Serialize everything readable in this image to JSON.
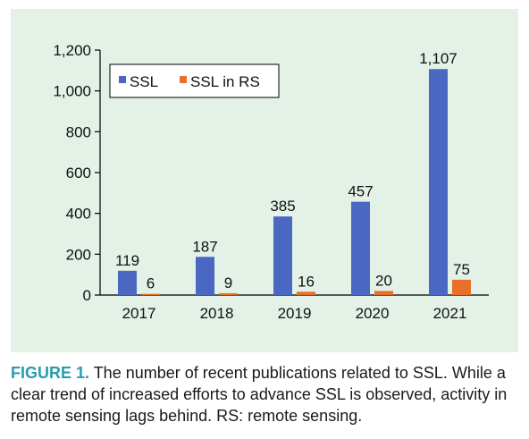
{
  "chart_data": {
    "type": "bar",
    "categories": [
      "2017",
      "2018",
      "2019",
      "2020",
      "2021"
    ],
    "series": [
      {
        "name": "SSL",
        "values": [
          119,
          187,
          385,
          457,
          1107
        ],
        "labels": [
          "119",
          "187",
          "385",
          "457",
          "1,107"
        ]
      },
      {
        "name": "SSL in RS",
        "values": [
          6,
          9,
          16,
          20,
          75
        ],
        "labels": [
          "6",
          "9",
          "16",
          "20",
          "75"
        ]
      }
    ],
    "yticks": [
      0,
      200,
      400,
      600,
      800,
      1000,
      1200
    ],
    "ytick_labels": [
      "0",
      "200",
      "400",
      "600",
      "800",
      "1,000",
      "1,200"
    ],
    "ylim": [
      0,
      1200
    ],
    "grid": false,
    "legend_position": "top-left"
  },
  "colors": {
    "SSL": "#4a68c2",
    "SSL in RS": "#e8702a",
    "panel": "#e3f1e7",
    "caption_accent": "#2a9bb0"
  },
  "caption": {
    "label": "FIGURE 1.",
    "text": " The number of recent publications related to SSL. While a clear trend of increased efforts to advance SSL is observed, activity in remote sensing lags behind. RS: remote sensing."
  }
}
